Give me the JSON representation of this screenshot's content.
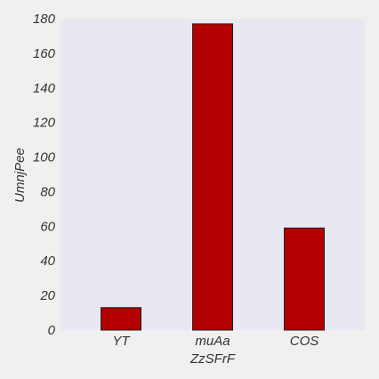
{
  "chart_data": {
    "type": "bar",
    "title": "",
    "xlabel": "ZzSFrF",
    "ylabel": "UmnjPee",
    "categories": [
      "YT",
      "muAa",
      "COS"
    ],
    "values": [
      13,
      177,
      59
    ],
    "ylim": [
      0,
      180
    ],
    "yticks": [
      0,
      20,
      40,
      60,
      80,
      100,
      120,
      140,
      160,
      180
    ],
    "ytick_labels": [
      "0",
      "20",
      "40",
      "60",
      "80",
      "100",
      "120",
      "140",
      "160",
      "180"
    ],
    "grid": false,
    "legend": "none",
    "colors": {
      "bar_fill": "#b30000",
      "bar_stroke": "#222222",
      "plot_background": "#e8e8f2",
      "figure_background": "#f0f0f0",
      "text": "#333333"
    }
  }
}
